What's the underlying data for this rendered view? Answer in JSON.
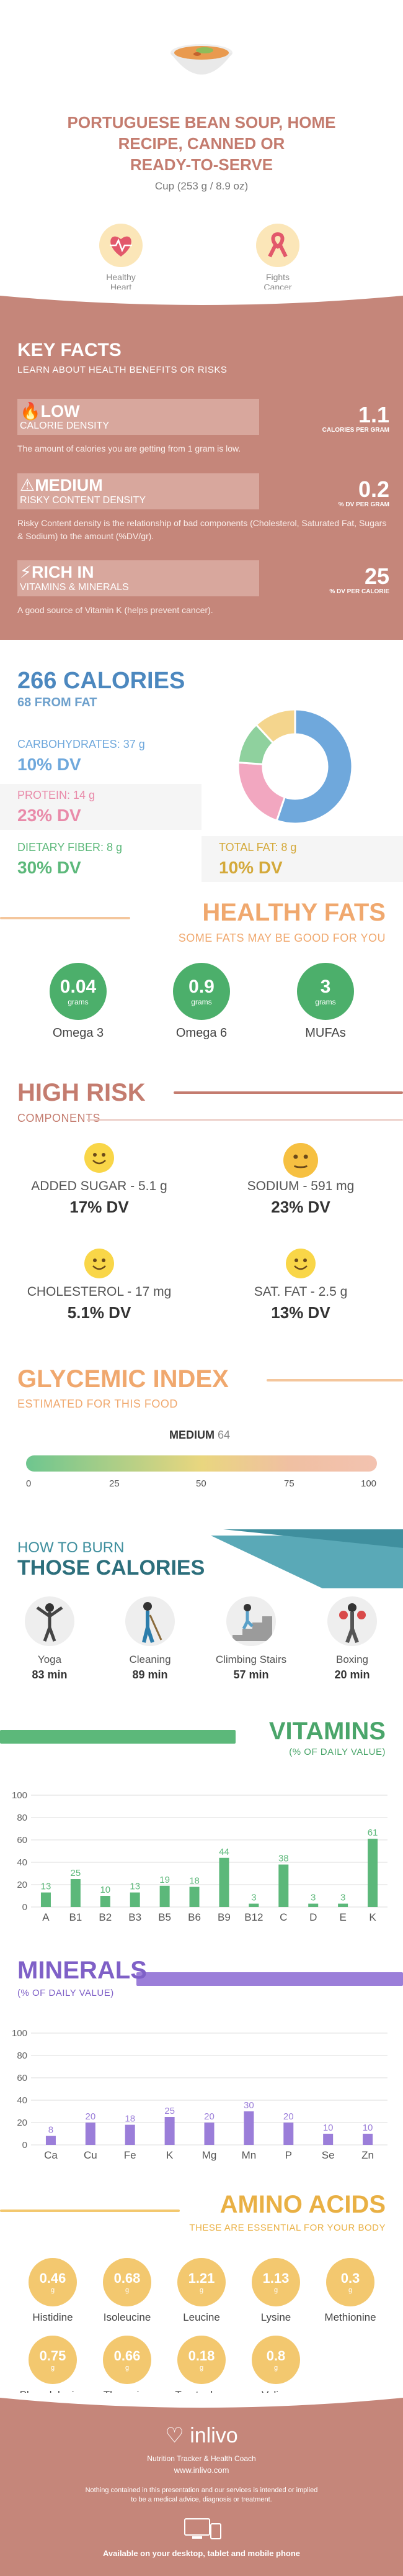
{
  "header": {
    "title_line1": "PORTUGUESE BEAN SOUP, HOME",
    "title_line2": "RECIPE, CANNED OR",
    "title_line3": "READY-TO-SERVE",
    "serving": "Cup (253 g / 8.9 oz)",
    "benefits": [
      {
        "label1": "Healthy",
        "label2": "Heart",
        "icon": "heart-rate-icon"
      },
      {
        "label1": "Fights",
        "label2": "Cancer",
        "icon": "awareness-ribbon-icon"
      }
    ]
  },
  "key_facts": {
    "title": "KEY FACTS",
    "subtitle": "LEARN ABOUT HEALTH BENEFITS OR RISKS",
    "items": [
      {
        "level": "LOW",
        "label": "CALORIE DENSITY",
        "value": "1.1",
        "unit": "CALORIES PER GRAM",
        "desc": "The amount of calories you are getting from 1 gram is low.",
        "icon": "flame-icon"
      },
      {
        "level": "MEDIUM",
        "label": "RISKY CONTENT DENSITY",
        "value": "0.2",
        "unit": "% DV PER GRAM",
        "desc": "Risky Content density is the relationship of bad components (Cholesterol, Saturated Fat, Sugars & Sodium) to the amount (%DV/gr).",
        "icon": "warning-icon"
      },
      {
        "level": "RICH  IN",
        "label": "VITAMINS & MINERALS",
        "value": "25",
        "unit": "% DV PER CALORIE",
        "desc": "A good source of Vitamin K (helps prevent cancer).",
        "icon": "bolt-icon"
      }
    ]
  },
  "calories": {
    "title": "266 CALORIES",
    "subtitle": "68 FROM FAT",
    "macros": [
      {
        "label": "CARBOHYDRATES: 37 g",
        "dv": "10% DV",
        "color": "#6fa8dc",
        "value": 37
      },
      {
        "label": "PROTEIN: 14 g",
        "dv": "23% DV",
        "color": "#f2a7c0",
        "value": 14
      },
      {
        "label": "DIETARY FIBER: 8 g",
        "dv": "30% DV",
        "color": "#8fd19e",
        "value": 8
      },
      {
        "label": "TOTAL FAT: 8 g",
        "dv": "10% DV",
        "color": "#f4d58d",
        "value": 8
      }
    ]
  },
  "healthy_fats": {
    "title": "HEALTHY FATS",
    "subtitle": "SOME FATS MAY BE GOOD FOR YOU",
    "items": [
      {
        "value": "0.04",
        "unit": "grams",
        "name": "Omega 3"
      },
      {
        "value": "0.9",
        "unit": "grams",
        "name": "Omega 6"
      },
      {
        "value": "3",
        "unit": "grams",
        "name": "MUFAs"
      }
    ]
  },
  "high_risk": {
    "title": "HIGH RISK",
    "subtitle": "COMPONENTS",
    "items": [
      {
        "label": "ADDED SUGAR - 5.1 g",
        "dv": "17% DV",
        "face": "happy"
      },
      {
        "label": "SODIUM - 591 mg",
        "dv": "23% DV",
        "face": "neutral"
      },
      {
        "label": "CHOLESTEROL - 17 mg",
        "dv": "5.1% DV",
        "face": "happy"
      },
      {
        "label": "SAT. FAT - 2.5 g",
        "dv": "13% DV",
        "face": "happy"
      }
    ]
  },
  "glycemic": {
    "title": "GLYCEMIC INDEX",
    "subtitle": "ESTIMATED FOR THIS FOOD",
    "level": "MEDIUM",
    "value": "64",
    "ticks": [
      "0",
      "25",
      "50",
      "75",
      "100"
    ]
  },
  "burn": {
    "title1": "HOW TO BURN",
    "title2": "THOSE CALORIES",
    "activities": [
      {
        "name": "Yoga",
        "time": "83 min"
      },
      {
        "name": "Cleaning",
        "time": "89 min"
      },
      {
        "name": "Climbing Stairs",
        "time": "57 min"
      },
      {
        "name": "Boxing",
        "time": "20 min"
      }
    ]
  },
  "vitamins": {
    "title": "VITAMINS",
    "subtitle": "(% OF DAILY VALUE)",
    "chart_data": {
      "type": "bar",
      "categories": [
        "A",
        "B1",
        "B2",
        "B3",
        "B5",
        "B6",
        "B9",
        "B12",
        "C",
        "D",
        "E",
        "K"
      ],
      "values": [
        13,
        25,
        10,
        13,
        19,
        18,
        44,
        3,
        38,
        3,
        3,
        61
      ],
      "ylim": [
        0,
        100
      ],
      "yticks": [
        "0",
        "20",
        "40",
        "60",
        "80",
        "100"
      ],
      "color": "#5cb87a"
    }
  },
  "minerals": {
    "title": "MINERALS",
    "subtitle": "(% OF DAILY VALUE)",
    "chart_data": {
      "type": "bar",
      "categories": [
        "Ca",
        "Cu",
        "Fe",
        "K",
        "Mg",
        "Mn",
        "P",
        "Se",
        "Zn"
      ],
      "values": [
        8,
        20,
        18,
        25,
        20,
        30,
        20,
        10,
        10
      ],
      "ylim": [
        0,
        100
      ],
      "yticks": [
        "0",
        "20",
        "40",
        "60",
        "80",
        "100"
      ],
      "color": "#9b7ed9"
    }
  },
  "amino": {
    "title": "AMINO ACIDS",
    "subtitle": "THESE ARE ESSENTIAL FOR YOUR BODY",
    "items": [
      {
        "value": "0.46",
        "unit": "g",
        "name": "Histidine"
      },
      {
        "value": "0.68",
        "unit": "g",
        "name": "Isoleucine"
      },
      {
        "value": "1.21",
        "unit": "g",
        "name": "Leucine"
      },
      {
        "value": "1.13",
        "unit": "g",
        "name": "Lysine"
      },
      {
        "value": "0.3",
        "unit": "g",
        "name": "Methionine"
      },
      {
        "value": "0.75",
        "unit": "g",
        "name": "Phenylalanine"
      },
      {
        "value": "0.66",
        "unit": "g",
        "name": "Threonine"
      },
      {
        "value": "0.18",
        "unit": "g",
        "name": "Tryptophan"
      },
      {
        "value": "0.8",
        "unit": "g",
        "name": "Valine"
      }
    ]
  },
  "footer": {
    "brand": "inlivo",
    "tagline": "Nutrition Tracker & Health Coach",
    "url": "www.inlivo.com",
    "disclaimer1": "Nothing contained in this presentation and our services is intended or implied",
    "disclaimer2": "to be a medical advice, diagnosis or treatment.",
    "devices": "Available on your desktop, tablet and mobile phone"
  }
}
